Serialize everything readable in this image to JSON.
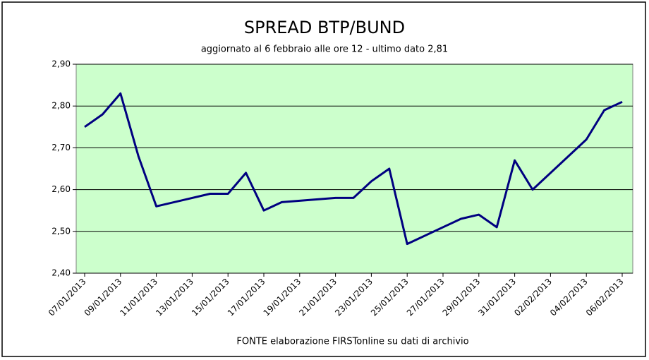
{
  "chart_data": {
    "type": "line",
    "title": "SPREAD BTP/BUND",
    "subtitle": "aggiornato al 6 febbraio alle ore 12 - ultimo dato 2,81",
    "source": "FONTE elaborazione FIRSTonline su dati di archivio",
    "x": [
      "07/01/2013",
      "08/01/2013",
      "09/01/2013",
      "10/01/2013",
      "11/01/2013",
      "14/01/2013",
      "15/01/2013",
      "16/01/2013",
      "17/01/2013",
      "18/01/2013",
      "21/01/2013",
      "22/01/2013",
      "23/01/2013",
      "24/01/2013",
      "25/01/2013",
      "28/01/2013",
      "29/01/2013",
      "30/01/2013",
      "31/01/2013",
      "01/02/2013",
      "04/02/2013",
      "05/02/2013",
      "06/02/2013"
    ],
    "series": [
      {
        "color": "#000080",
        "values": [
          2.75,
          2.78,
          2.83,
          2.68,
          2.56,
          2.59,
          2.59,
          2.64,
          2.55,
          2.57,
          2.58,
          2.58,
          2.62,
          2.65,
          2.47,
          2.53,
          2.54,
          2.51,
          2.67,
          2.6,
          2.72,
          2.79,
          2.81
        ]
      }
    ],
    "xticks": [
      "07/01/2013",
      "09/01/2013",
      "11/01/2013",
      "13/01/2013",
      "15/01/2013",
      "17/01/2013",
      "19/01/2013",
      "21/01/2013",
      "23/01/2013",
      "25/01/2013",
      "27/01/2013",
      "29/01/2013",
      "31/01/2013",
      "02/02/2013",
      "04/02/2013",
      "06/02/2013"
    ],
    "ylim": [
      2.4,
      2.9
    ],
    "yticks": [
      {
        "value": 2.4,
        "label": "2,40"
      },
      {
        "value": 2.5,
        "label": "2,50"
      },
      {
        "value": 2.6,
        "label": "2,60"
      },
      {
        "value": 2.7,
        "label": "2,70"
      },
      {
        "value": 2.8,
        "label": "2,80"
      },
      {
        "value": 2.9,
        "label": "2,90"
      }
    ],
    "grid": true,
    "plot_background": "#ccffcc"
  }
}
